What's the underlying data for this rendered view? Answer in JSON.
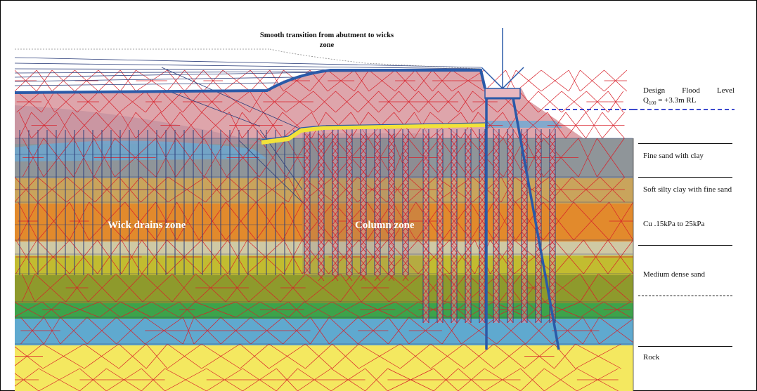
{
  "annotation": {
    "line1": "Smooth transition from abutment to wicks",
    "line2": "zone"
  },
  "zones": {
    "wick": "Wick drains zone",
    "column": "Column zone"
  },
  "legend": {
    "flood_line1": "Design Flood Level",
    "flood_q": "Q",
    "flood_sub": "100",
    "flood_value": " = +3.3m RL",
    "fine_sand": "Fine sand with clay",
    "soft_clay": "Soft silty clay with fine sand",
    "cu": "Cu .15kPa to 25kPa",
    "medium_sand": "Medium dense sand",
    "rock": "Rock"
  },
  "colors": {
    "mesh": "#d8202a",
    "structure": "#2a5aa8",
    "rock": "#f4e860",
    "gravel_blue": "#5fa9cf",
    "green": "#3da34a",
    "olive": "#94a02a",
    "olive_light": "#c8c232",
    "pale": "#cfc9a4",
    "orange": "#e28a2c",
    "tan": "#c9a45c",
    "grey": "#8f9599",
    "embankment": "#e3a8ad",
    "drain_yellow": "#f2e23a"
  }
}
